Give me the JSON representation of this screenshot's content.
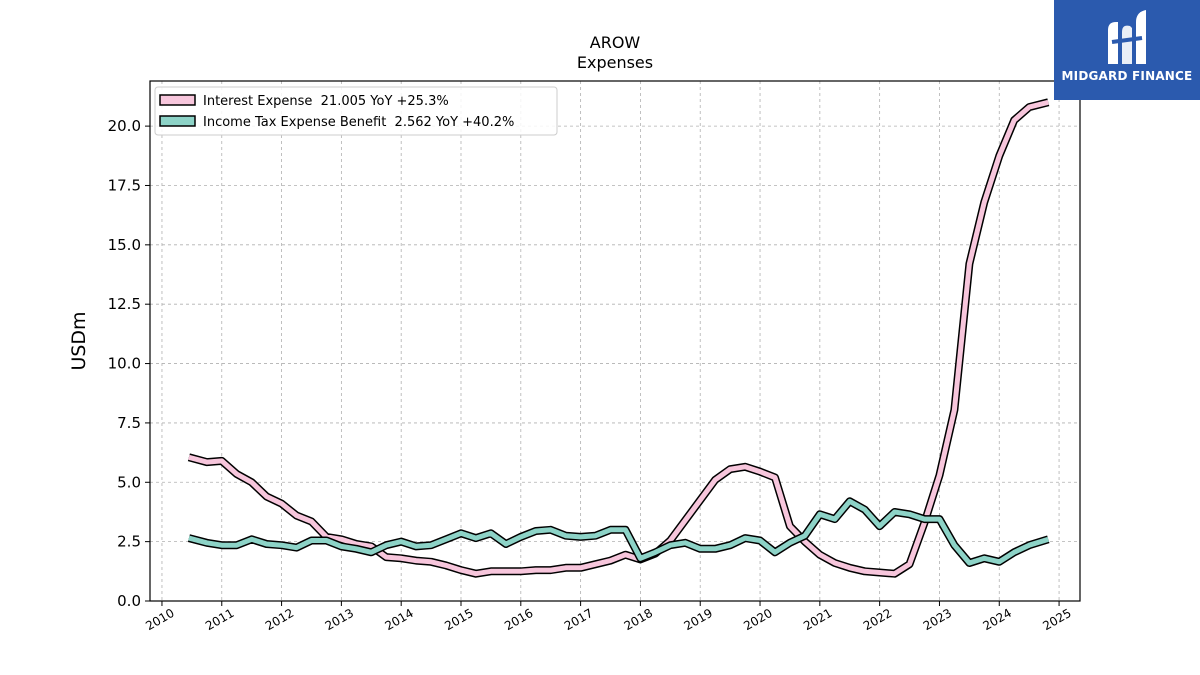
{
  "brand": {
    "name": "MIDGARD FINANCE",
    "bg_color": "#2b5aae"
  },
  "chart_data": {
    "type": "line",
    "title": "AROW",
    "subtitle": "Expenses",
    "xlabel": "",
    "ylabel": "USDm",
    "xlim": [
      2009.8,
      2025.35
    ],
    "ylim": [
      0,
      21.9
    ],
    "x_ticks": [
      "2010",
      "2011",
      "2012",
      "2013",
      "2014",
      "2015",
      "2016",
      "2017",
      "2018",
      "2019",
      "2020",
      "2021",
      "2022",
      "2023",
      "2024",
      "2025"
    ],
    "y_ticks": [
      "0.0",
      "2.5",
      "5.0",
      "7.5",
      "10.0",
      "12.5",
      "15.0",
      "17.5",
      "20.0"
    ],
    "grid": true,
    "legend_position": "top-left",
    "series": [
      {
        "name": "Interest Expense  21.005 YoY +25.3%",
        "color": "#f7c6dc",
        "points": [
          [
            2010.45,
            6.05
          ],
          [
            2010.75,
            5.85
          ],
          [
            2011.0,
            5.9
          ],
          [
            2011.25,
            5.35
          ],
          [
            2011.5,
            5.0
          ],
          [
            2011.75,
            4.4
          ],
          [
            2012.0,
            4.1
          ],
          [
            2012.25,
            3.6
          ],
          [
            2012.5,
            3.35
          ],
          [
            2012.75,
            2.7
          ],
          [
            2013.0,
            2.6
          ],
          [
            2013.25,
            2.4
          ],
          [
            2013.5,
            2.3
          ],
          [
            2013.75,
            1.85
          ],
          [
            2014.0,
            1.8
          ],
          [
            2014.25,
            1.7
          ],
          [
            2014.5,
            1.65
          ],
          [
            2014.75,
            1.5
          ],
          [
            2015.0,
            1.3
          ],
          [
            2015.25,
            1.15
          ],
          [
            2015.5,
            1.25
          ],
          [
            2015.75,
            1.25
          ],
          [
            2016.0,
            1.25
          ],
          [
            2016.25,
            1.3
          ],
          [
            2016.5,
            1.3
          ],
          [
            2016.75,
            1.4
          ],
          [
            2017.0,
            1.4
          ],
          [
            2017.25,
            1.55
          ],
          [
            2017.5,
            1.7
          ],
          [
            2017.75,
            1.95
          ],
          [
            2018.0,
            1.75
          ],
          [
            2018.25,
            2.0
          ],
          [
            2018.5,
            2.55
          ],
          [
            2018.75,
            3.4
          ],
          [
            2019.0,
            4.25
          ],
          [
            2019.25,
            5.1
          ],
          [
            2019.5,
            5.55
          ],
          [
            2019.75,
            5.65
          ],
          [
            2020.0,
            5.45
          ],
          [
            2020.25,
            5.2
          ],
          [
            2020.5,
            3.15
          ],
          [
            2020.75,
            2.5
          ],
          [
            2021.0,
            1.95
          ],
          [
            2021.25,
            1.6
          ],
          [
            2021.5,
            1.4
          ],
          [
            2021.75,
            1.25
          ],
          [
            2022.0,
            1.2
          ],
          [
            2022.25,
            1.15
          ],
          [
            2022.5,
            1.55
          ],
          [
            2022.75,
            3.3
          ],
          [
            2023.0,
            5.3
          ],
          [
            2023.25,
            8.05
          ],
          [
            2023.5,
            14.2
          ],
          [
            2023.75,
            16.8
          ],
          [
            2024.0,
            18.75
          ],
          [
            2024.25,
            20.25
          ],
          [
            2024.5,
            20.8
          ],
          [
            2024.82,
            21.005
          ]
        ]
      },
      {
        "name": "Income Tax Expense Benefit  2.562 YoY +40.2%",
        "color": "#8dd3c7",
        "points": [
          [
            2010.45,
            2.65
          ],
          [
            2010.75,
            2.45
          ],
          [
            2011.0,
            2.35
          ],
          [
            2011.25,
            2.35
          ],
          [
            2011.5,
            2.6
          ],
          [
            2011.75,
            2.4
          ],
          [
            2012.0,
            2.35
          ],
          [
            2012.25,
            2.25
          ],
          [
            2012.5,
            2.55
          ],
          [
            2012.75,
            2.55
          ],
          [
            2013.0,
            2.3
          ],
          [
            2013.25,
            2.2
          ],
          [
            2013.5,
            2.05
          ],
          [
            2013.75,
            2.35
          ],
          [
            2014.0,
            2.5
          ],
          [
            2014.25,
            2.3
          ],
          [
            2014.5,
            2.35
          ],
          [
            2014.75,
            2.6
          ],
          [
            2015.0,
            2.85
          ],
          [
            2015.25,
            2.65
          ],
          [
            2015.5,
            2.85
          ],
          [
            2015.75,
            2.4
          ],
          [
            2016.0,
            2.7
          ],
          [
            2016.25,
            2.95
          ],
          [
            2016.5,
            3.0
          ],
          [
            2016.75,
            2.75
          ],
          [
            2017.0,
            2.7
          ],
          [
            2017.25,
            2.75
          ],
          [
            2017.5,
            3.0
          ],
          [
            2017.75,
            3.0
          ],
          [
            2018.0,
            1.8
          ],
          [
            2018.25,
            2.05
          ],
          [
            2018.5,
            2.35
          ],
          [
            2018.75,
            2.45
          ],
          [
            2019.0,
            2.2
          ],
          [
            2019.25,
            2.2
          ],
          [
            2019.5,
            2.35
          ],
          [
            2019.75,
            2.65
          ],
          [
            2020.0,
            2.55
          ],
          [
            2020.25,
            2.05
          ],
          [
            2020.5,
            2.45
          ],
          [
            2020.75,
            2.75
          ],
          [
            2021.0,
            3.65
          ],
          [
            2021.25,
            3.45
          ],
          [
            2021.5,
            4.2
          ],
          [
            2021.75,
            3.85
          ],
          [
            2022.0,
            3.15
          ],
          [
            2022.25,
            3.75
          ],
          [
            2022.5,
            3.65
          ],
          [
            2022.75,
            3.45
          ],
          [
            2023.0,
            3.45
          ],
          [
            2023.25,
            2.35
          ],
          [
            2023.5,
            1.6
          ],
          [
            2023.75,
            1.8
          ],
          [
            2024.0,
            1.65
          ],
          [
            2024.25,
            2.05
          ],
          [
            2024.5,
            2.35
          ],
          [
            2024.82,
            2.6
          ]
        ]
      }
    ]
  }
}
